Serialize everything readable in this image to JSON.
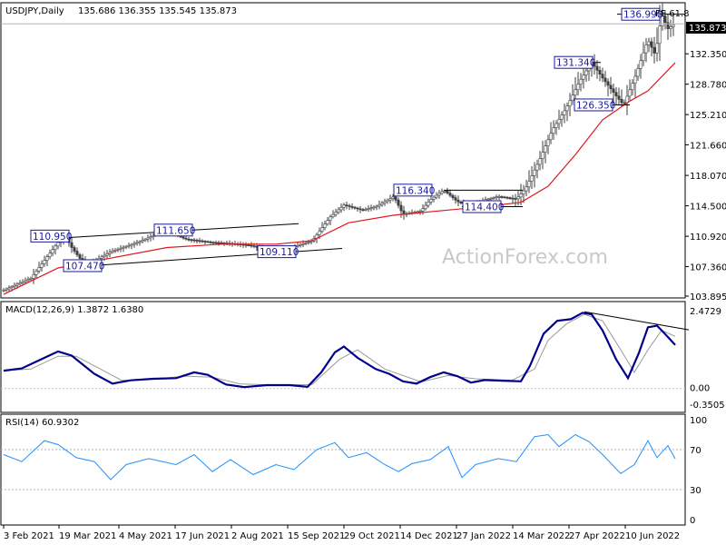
{
  "chart_data": [
    {
      "type": "candlestick",
      "symbol_label": "USDJPY,Daily",
      "ohlc_label": "135.686 136.355 135.545 135.873",
      "last_price_label": "135.873",
      "y_ticks": [
        "132.350",
        "128.780",
        "125.210",
        "121.660",
        "118.070",
        "114.500",
        "110.920",
        "107.360",
        "103.895"
      ],
      "ylim": [
        103.895,
        137.6
      ],
      "x_ticks": [
        "3 Feb 2021",
        "19 Mar 2021",
        "4 May 2021",
        "17 Jun 2021",
        "2 Aug 2021",
        "15 Sep 2021",
        "29 Oct 2021",
        "14 Dec 2021",
        "27 Jan 2022",
        "14 Mar 2022",
        "27 Apr 2022",
        "10 Jun 2022"
      ],
      "price_path": [
        [
          0,
          104.6
        ],
        [
          30,
          106.0
        ],
        [
          60,
          110.2
        ],
        [
          68,
          110.95
        ],
        [
          75,
          109.6
        ],
        [
          90,
          107.47
        ],
        [
          120,
          109.2
        ],
        [
          150,
          110.3
        ],
        [
          178,
          111.65
        ],
        [
          200,
          110.6
        ],
        [
          230,
          110.2
        ],
        [
          260,
          110.0
        ],
        [
          275,
          109.8
        ],
        [
          290,
          109.11
        ],
        [
          320,
          109.7
        ],
        [
          340,
          110.4
        ],
        [
          360,
          113.2
        ],
        [
          375,
          114.6
        ],
        [
          395,
          114.0
        ],
        [
          410,
          114.4
        ],
        [
          430,
          115.6
        ],
        [
          440,
          113.5
        ],
        [
          460,
          113.9
        ],
        [
          470,
          115.2
        ],
        [
          485,
          116.34
        ],
        [
          500,
          115.0
        ],
        [
          512,
          114.4
        ],
        [
          530,
          115.2
        ],
        [
          545,
          115.6
        ],
        [
          565,
          115.3
        ],
        [
          575,
          116.5
        ],
        [
          590,
          119.8
        ],
        [
          605,
          123.5
        ],
        [
          620,
          126.0
        ],
        [
          635,
          129.2
        ],
        [
          648,
          131.34
        ],
        [
          660,
          129.5
        ],
        [
          675,
          127.4
        ],
        [
          683,
          126.35
        ],
        [
          695,
          129.4
        ],
        [
          710,
          134.0
        ],
        [
          718,
          132.2
        ],
        [
          725,
          136.99
        ],
        [
          732,
          135.3
        ],
        [
          740,
          135.9
        ]
      ],
      "ma_path": [
        [
          0,
          104.1
        ],
        [
          60,
          107.2
        ],
        [
          120,
          108.4
        ],
        [
          180,
          109.6
        ],
        [
          240,
          110.0
        ],
        [
          300,
          110.0
        ],
        [
          340,
          110.4
        ],
        [
          380,
          112.5
        ],
        [
          430,
          113.4
        ],
        [
          480,
          113.9
        ],
        [
          520,
          114.3
        ],
        [
          570,
          114.9
        ],
        [
          600,
          116.8
        ],
        [
          630,
          120.5
        ],
        [
          660,
          124.6
        ],
        [
          690,
          126.8
        ],
        [
          710,
          128.0
        ],
        [
          740,
          131.3
        ]
      ],
      "annotations": [
        {
          "text": "110.950",
          "at": [
            30,
            110.95
          ]
        },
        {
          "text": "111.650",
          "at": [
            166,
            111.65
          ]
        },
        {
          "text": "107.470",
          "at": [
            66,
            107.47
          ]
        },
        {
          "text": "109.110",
          "at": [
            280,
            109.11
          ]
        },
        {
          "text": "116.340",
          "at": [
            430,
            116.34
          ]
        },
        {
          "text": "114.400",
          "at": [
            506,
            114.4
          ]
        },
        {
          "text": "131.340",
          "at": [
            607,
            131.34
          ]
        },
        {
          "text": "126.350",
          "at": [
            629,
            126.35
          ]
        },
        {
          "text": "136.990",
          "at": [
            681,
            136.99
          ]
        }
      ],
      "fib_label": "FE 61.8",
      "fib_level": 137.0,
      "watermark": "ActionForex.com",
      "colors": {
        "ma": "#e0191e",
        "candle": "#3f3f3f",
        "label": "#1a1a9c",
        "line": "#000000"
      }
    },
    {
      "type": "line",
      "name_label": "MACD(12,26,9) 1.3872 1.6380",
      "y_ticks": [
        "2.4729",
        "0.00",
        "-0.3505"
      ],
      "ylim": [
        -0.3505,
        2.4729
      ],
      "macd": [
        [
          0,
          0.55
        ],
        [
          20,
          0.62
        ],
        [
          45,
          0.95
        ],
        [
          60,
          1.15
        ],
        [
          75,
          1.02
        ],
        [
          100,
          0.45
        ],
        [
          120,
          0.15
        ],
        [
          140,
          0.25
        ],
        [
          165,
          0.3
        ],
        [
          190,
          0.32
        ],
        [
          210,
          0.5
        ],
        [
          225,
          0.42
        ],
        [
          245,
          0.12
        ],
        [
          265,
          0.04
        ],
        [
          290,
          0.1
        ],
        [
          315,
          0.1
        ],
        [
          335,
          0.05
        ],
        [
          350,
          0.5
        ],
        [
          365,
          1.12
        ],
        [
          375,
          1.3
        ],
        [
          390,
          0.95
        ],
        [
          410,
          0.6
        ],
        [
          425,
          0.45
        ],
        [
          440,
          0.22
        ],
        [
          455,
          0.15
        ],
        [
          470,
          0.35
        ],
        [
          485,
          0.5
        ],
        [
          500,
          0.38
        ],
        [
          515,
          0.18
        ],
        [
          530,
          0.26
        ],
        [
          550,
          0.24
        ],
        [
          570,
          0.22
        ],
        [
          580,
          0.7
        ],
        [
          595,
          1.7
        ],
        [
          610,
          2.1
        ],
        [
          625,
          2.15
        ],
        [
          638,
          2.35
        ],
        [
          648,
          2.3
        ],
        [
          660,
          1.8
        ],
        [
          675,
          0.9
        ],
        [
          688,
          0.32
        ],
        [
          700,
          1.1
        ],
        [
          710,
          1.9
        ],
        [
          720,
          1.95
        ],
        [
          728,
          1.72
        ],
        [
          740,
          1.35
        ]
      ],
      "signal": [
        [
          0,
          0.55
        ],
        [
          30,
          0.6
        ],
        [
          60,
          1.0
        ],
        [
          80,
          1.0
        ],
        [
          110,
          0.55
        ],
        [
          130,
          0.25
        ],
        [
          160,
          0.28
        ],
        [
          200,
          0.38
        ],
        [
          230,
          0.35
        ],
        [
          260,
          0.14
        ],
        [
          300,
          0.1
        ],
        [
          340,
          0.12
        ],
        [
          370,
          0.9
        ],
        [
          390,
          1.2
        ],
        [
          420,
          0.6
        ],
        [
          460,
          0.2
        ],
        [
          490,
          0.4
        ],
        [
          520,
          0.3
        ],
        [
          560,
          0.25
        ],
        [
          585,
          0.6
        ],
        [
          600,
          1.5
        ],
        [
          620,
          2.0
        ],
        [
          640,
          2.3
        ],
        [
          660,
          2.1
        ],
        [
          680,
          1.2
        ],
        [
          695,
          0.5
        ],
        [
          710,
          1.2
        ],
        [
          725,
          1.8
        ],
        [
          740,
          1.62
        ]
      ],
      "trendline": [
        [
          640,
          2.38
        ],
        [
          755,
          1.82
        ]
      ],
      "colors": {
        "macd": "#00008b",
        "signal": "#9a9a9a"
      }
    },
    {
      "type": "line",
      "name_label": "RSI(14) 60.9302",
      "y_ticks": [
        "100",
        "70",
        "30",
        "0"
      ],
      "ylim": [
        0,
        100
      ],
      "rsi": [
        [
          0,
          65
        ],
        [
          20,
          58
        ],
        [
          45,
          79
        ],
        [
          60,
          75
        ],
        [
          80,
          62
        ],
        [
          100,
          58
        ],
        [
          118,
          40
        ],
        [
          135,
          55
        ],
        [
          160,
          61
        ],
        [
          190,
          55
        ],
        [
          210,
          65
        ],
        [
          230,
          48
        ],
        [
          250,
          60
        ],
        [
          275,
          45
        ],
        [
          300,
          55
        ],
        [
          320,
          50
        ],
        [
          345,
          70
        ],
        [
          365,
          77
        ],
        [
          380,
          62
        ],
        [
          400,
          67
        ],
        [
          420,
          55
        ],
        [
          435,
          48
        ],
        [
          450,
          56
        ],
        [
          470,
          60
        ],
        [
          490,
          73
        ],
        [
          505,
          42
        ],
        [
          520,
          55
        ],
        [
          545,
          61
        ],
        [
          565,
          58
        ],
        [
          585,
          83
        ],
        [
          600,
          85
        ],
        [
          612,
          73
        ],
        [
          630,
          85
        ],
        [
          645,
          78
        ],
        [
          660,
          65
        ],
        [
          680,
          46
        ],
        [
          695,
          55
        ],
        [
          710,
          79
        ],
        [
          720,
          62
        ],
        [
          732,
          74
        ],
        [
          740,
          60.9
        ]
      ],
      "colors": {
        "rsi": "#1e90ff"
      }
    }
  ]
}
